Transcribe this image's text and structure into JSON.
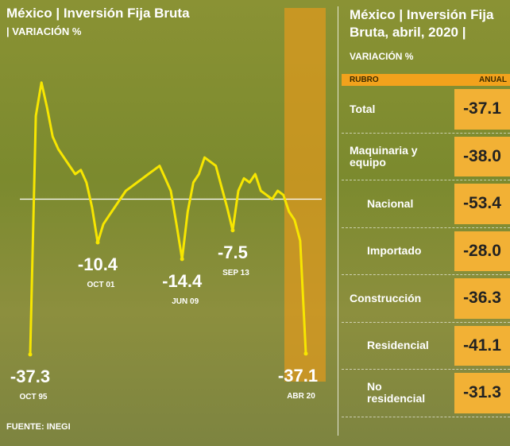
{
  "chart_data": {
    "type": "line",
    "title": "México | Inversión Fija Bruta",
    "subtitle": "| VARIACIÓN %",
    "source": "FUENTE: INEGI",
    "categories": [
      "OCT 95",
      null,
      null,
      null,
      null,
      null,
      null,
      null,
      null,
      null,
      null,
      null,
      "OCT 01",
      null,
      null,
      null,
      null,
      null,
      null,
      null,
      null,
      null,
      null,
      null,
      null,
      null,
      null,
      "JUN 09",
      null,
      null,
      null,
      null,
      null,
      null,
      null,
      null,
      "SEP 13",
      null,
      null,
      null,
      null,
      null,
      null,
      null,
      null,
      null,
      null,
      null,
      null,
      "ABR 20"
    ],
    "values": [
      -37.3,
      20,
      28,
      22,
      15,
      12,
      10,
      8,
      6,
      7,
      4,
      -2,
      -10.4,
      -6,
      -4,
      -2,
      0,
      2,
      3,
      4,
      5,
      6,
      7,
      8,
      5,
      2,
      -6,
      -14.4,
      -3,
      4,
      6,
      10,
      9,
      8,
      3,
      -2,
      -7.5,
      2,
      5,
      4,
      6,
      2,
      1,
      0,
      2,
      1,
      -3,
      -5,
      -10,
      -37.1
    ],
    "color": "#f7e600",
    "ylim": [
      -40,
      44
    ],
    "hline": 0
  },
  "table": {
    "title": "México | Inversión Fija Bruta, abril, 2020 |",
    "subtitle": "VARIACIÓN %",
    "header": [
      "RUBRO",
      "ANUAL"
    ],
    "rows": [
      [
        "Total",
        "-37.1"
      ],
      [
        "Maquinaria y equipo",
        "-38.0"
      ],
      [
        "Nacional",
        "-53.4"
      ],
      [
        "Importado",
        "-28.0"
      ],
      [
        "Construcción",
        "-36.3"
      ],
      [
        "Residencial",
        "-41.1"
      ],
      [
        "No residencial",
        "-31.3"
      ]
    ]
  }
}
